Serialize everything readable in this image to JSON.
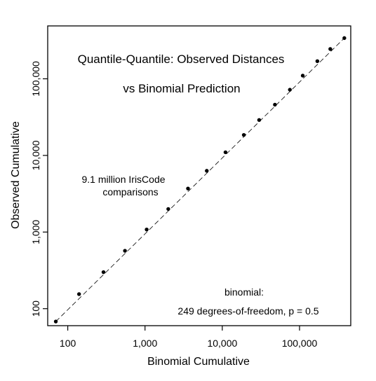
{
  "chart_data": {
    "type": "scatter",
    "title_line1": "Quantile-Quantile:  Observed Distances",
    "title_line2": "vs Binomial Prediction",
    "xlabel": "Binomial Cumulative",
    "ylabel": "Observed Cumulative",
    "x_scale": "log",
    "y_scale": "log",
    "xlim": [
      55,
      460000
    ],
    "ylim": [
      60,
      490000
    ],
    "x_ticks": [
      {
        "value": 100,
        "label": "100"
      },
      {
        "value": 1000,
        "label": "1,000"
      },
      {
        "value": 10000,
        "label": "10,000"
      },
      {
        "value": 100000,
        "label": "100,000"
      }
    ],
    "y_ticks": [
      {
        "value": 100,
        "label": "100"
      },
      {
        "value": 1000,
        "label": "1,000"
      },
      {
        "value": 10000,
        "label": "10,000"
      },
      {
        "value": 100000,
        "label": "100,000"
      }
    ],
    "annotation_comparisons": [
      "9.1 million IrisCode",
      "comparisons"
    ],
    "annotation_binomial": [
      "binomial:",
      "249 degrees-of-freedom,  p = 0.5"
    ],
    "grid": false,
    "line": {
      "style": "dashed",
      "from": [
        70,
        68
      ],
      "to": [
        380000,
        340000
      ]
    },
    "points": [
      {
        "x": 70,
        "y": 68
      },
      {
        "x": 140,
        "y": 155
      },
      {
        "x": 290,
        "y": 300
      },
      {
        "x": 550,
        "y": 570
      },
      {
        "x": 1050,
        "y": 1080
      },
      {
        "x": 2000,
        "y": 2000
      },
      {
        "x": 3600,
        "y": 3700
      },
      {
        "x": 6300,
        "y": 6300
      },
      {
        "x": 11000,
        "y": 11000
      },
      {
        "x": 19000,
        "y": 18500
      },
      {
        "x": 30000,
        "y": 29000
      },
      {
        "x": 48000,
        "y": 46000
      },
      {
        "x": 75000,
        "y": 72000
      },
      {
        "x": 110000,
        "y": 110000
      },
      {
        "x": 170000,
        "y": 170000
      },
      {
        "x": 250000,
        "y": 245000
      },
      {
        "x": 380000,
        "y": 340000
      }
    ]
  }
}
